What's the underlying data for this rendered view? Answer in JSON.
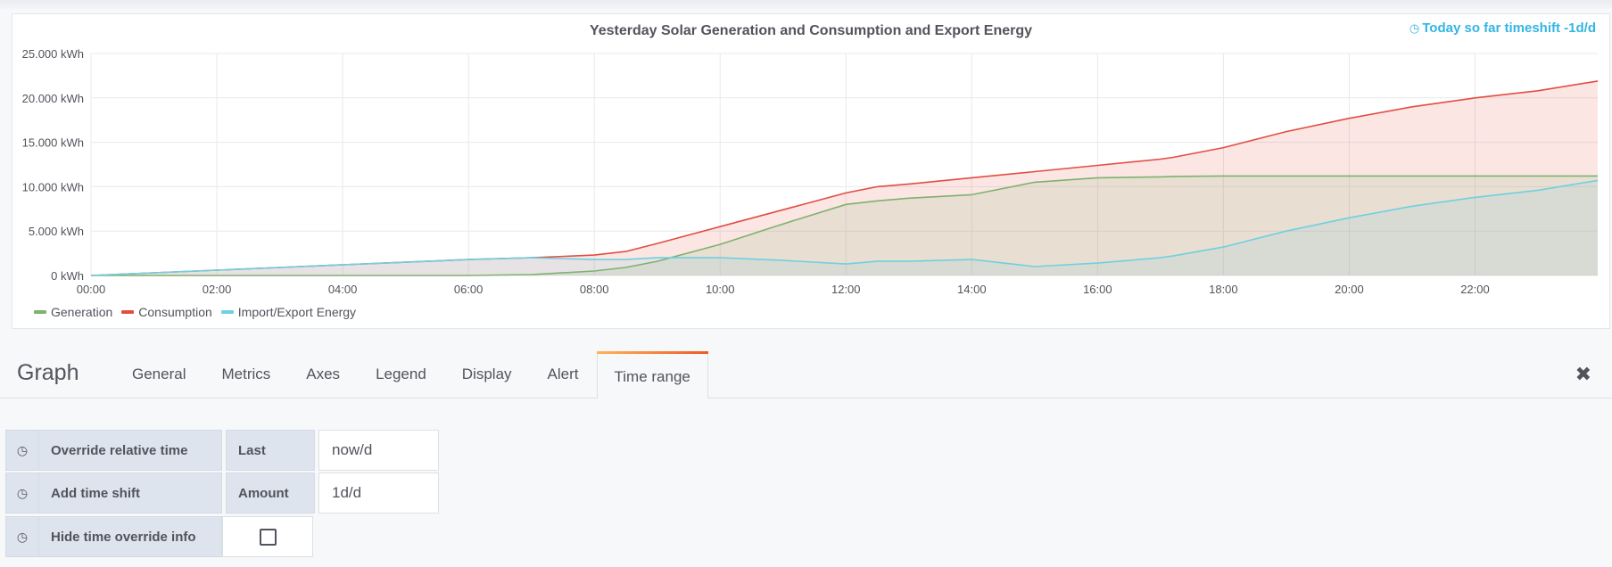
{
  "panel": {
    "title": "Yesterday Solar Generation and Consumption and Export Energy",
    "time_info_icon": "clock-icon",
    "time_info": "Today so far timeshift -1d/d"
  },
  "chart_data": {
    "type": "area",
    "title": "Yesterday Solar Generation and Consumption and Export Energy",
    "x_unit": "hour of day",
    "x_ticks": [
      "00:00",
      "02:00",
      "04:00",
      "06:00",
      "08:00",
      "10:00",
      "12:00",
      "14:00",
      "16:00",
      "18:00",
      "20:00",
      "22:00"
    ],
    "y_ticks": [
      "0 kWh",
      "5.000 kWh",
      "10.000 kWh",
      "15.000 kWh",
      "20.000 kWh",
      "25.000 kWh"
    ],
    "xlim": [
      0,
      23.95
    ],
    "ylim": [
      0,
      25
    ],
    "grid": true,
    "legend_position": "bottom-left",
    "x": [
      0,
      1,
      2,
      3,
      4,
      5,
      6,
      7,
      8,
      8.5,
      9,
      10,
      11,
      12,
      12.5,
      13,
      14,
      15,
      16,
      17,
      17.2,
      18,
      19,
      20,
      21,
      22,
      23,
      23.95
    ],
    "series": [
      {
        "name": "Generation",
        "color": "#7eb26d",
        "values": [
          0,
          0,
          0,
          0,
          0,
          0,
          0,
          0.1,
          0.5,
          0.9,
          1.6,
          3.5,
          5.8,
          8.0,
          8.4,
          8.7,
          9.1,
          10.5,
          11.0,
          11.1,
          11.15,
          11.2,
          11.2,
          11.2,
          11.2,
          11.2,
          11.2,
          11.2
        ]
      },
      {
        "name": "Consumption",
        "color": "#e24d42",
        "values": [
          0,
          0.3,
          0.6,
          0.9,
          1.2,
          1.5,
          1.8,
          2.0,
          2.3,
          2.7,
          3.6,
          5.5,
          7.4,
          9.3,
          10.0,
          10.3,
          11.0,
          11.7,
          12.4,
          13.1,
          13.3,
          14.4,
          16.2,
          17.7,
          19.0,
          20.0,
          20.8,
          21.9
        ]
      },
      {
        "name": "Import/Export Energy",
        "color": "#6ed0e0",
        "values": [
          0,
          0.3,
          0.6,
          0.9,
          1.2,
          1.5,
          1.8,
          2.0,
          1.8,
          1.8,
          2.0,
          2.0,
          1.7,
          1.3,
          1.6,
          1.6,
          1.8,
          1.0,
          1.4,
          2.0,
          2.2,
          3.2,
          5.0,
          6.5,
          7.8,
          8.8,
          9.6,
          10.7
        ]
      }
    ]
  },
  "editor": {
    "title": "Graph",
    "tabs": [
      "General",
      "Metrics",
      "Axes",
      "Legend",
      "Display",
      "Alert",
      "Time range"
    ],
    "active_tab": "Time range",
    "close_icon": "close-icon"
  },
  "time_range": {
    "override": {
      "icon": "clock-icon",
      "label": "Override relative time",
      "sublabel": "Last",
      "value": "now/d"
    },
    "shift": {
      "icon": "clock-icon",
      "label": "Add time shift",
      "sublabel": "Amount",
      "value": "1d/d"
    },
    "hide": {
      "icon": "clock-icon",
      "label": "Hide time override info",
      "checked": false
    }
  }
}
